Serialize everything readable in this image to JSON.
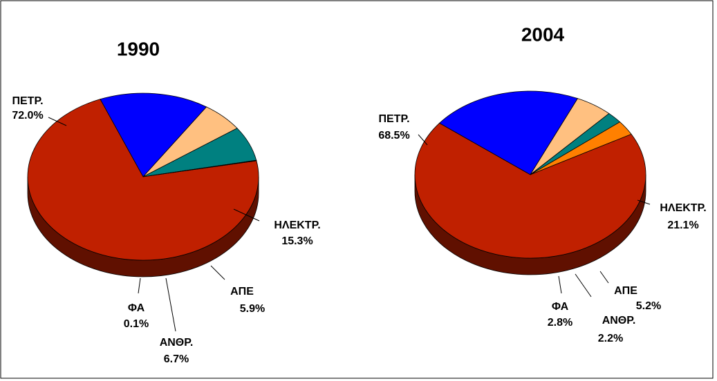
{
  "chart_data": [
    {
      "type": "pie",
      "title": "1990",
      "categories": [
        "ΠΕΤΡ.",
        "ΗΛΕΚΤΡ.",
        "ΑΠΕ",
        "ΑΝΘΡ.",
        "ΦΑ"
      ],
      "values": [
        72.0,
        15.3,
        5.9,
        6.7,
        0.1
      ],
      "value_labels": [
        "72.0%",
        "15.3%",
        "5.9%",
        "6.7%",
        "0.1%"
      ],
      "colors": [
        "#c02000",
        "#0000ff",
        "#ffc080",
        "#008080",
        "#ff8000"
      ]
    },
    {
      "type": "pie",
      "title": "2004",
      "categories": [
        "ΠΕΤΡ.",
        "ΗΛΕΚΤΡ.",
        "ΑΠΕ",
        "ΑΝΘΡ.",
        "ΦΑ"
      ],
      "values": [
        68.5,
        21.1,
        5.2,
        2.2,
        2.8
      ],
      "value_labels": [
        "68.5%",
        "21.1%",
        "5.2%",
        "2.2%",
        "2.8%"
      ],
      "colors": [
        "#c02000",
        "#0000ff",
        "#ffc080",
        "#008080",
        "#ff8000"
      ]
    }
  ]
}
